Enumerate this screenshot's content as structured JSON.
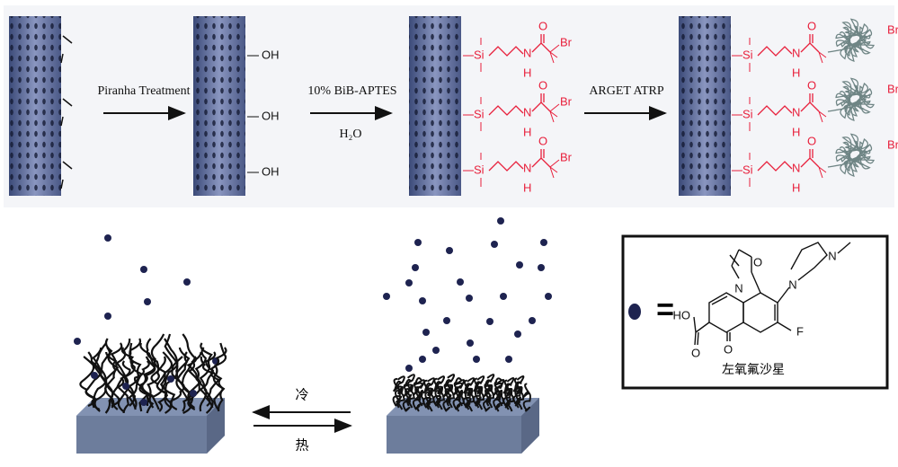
{
  "scheme": {
    "steps": [
      {
        "label": "Piranha Treatment"
      },
      {
        "label": "10% BiB-APTES",
        "sublabel": "H₂O"
      },
      {
        "label": "ARGET ATRP"
      }
    ],
    "hydroxyl": "OH",
    "linker": {
      "si": "Si",
      "n": "N",
      "h": "H",
      "o": "O",
      "br": "Br"
    }
  },
  "release": {
    "cold": "冷",
    "hot": "热"
  },
  "legend": {
    "equals": "=",
    "drug_name": "左氧氟沙星",
    "atoms": {
      "ho": "HO",
      "o": "O",
      "n": "N",
      "f": "F"
    }
  }
}
